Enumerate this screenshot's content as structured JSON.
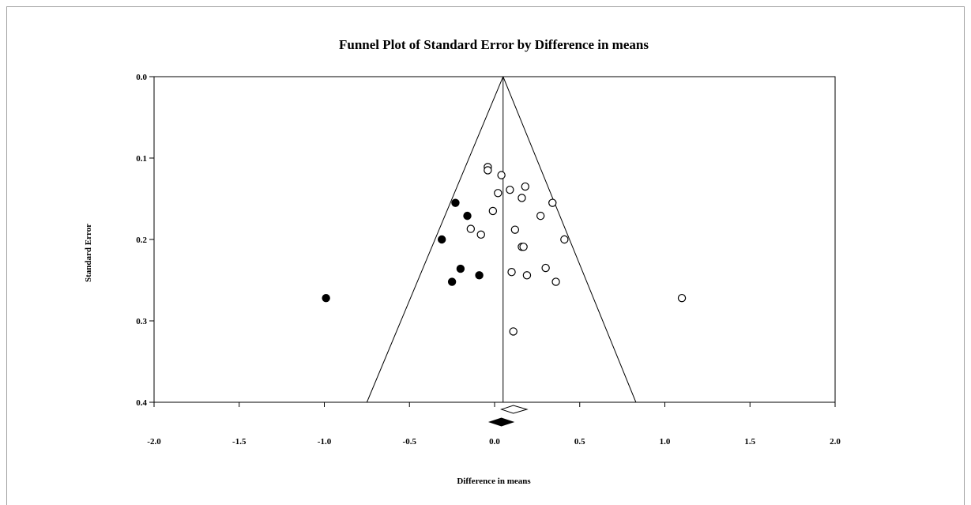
{
  "chart_data": {
    "type": "scatter",
    "title": "Funnel Plot of Standard Error by Difference in means",
    "xlabel": "Difference in means",
    "ylabel": "Standard Error",
    "xlim": [
      -2.0,
      2.0
    ],
    "ylim": [
      0.0,
      0.4
    ],
    "y_inverted": true,
    "grid": false,
    "x_ticks": [
      "-2.0",
      "-1.5",
      "-1.0",
      "-0.5",
      "0.0",
      "0.5",
      "1.0",
      "1.5",
      "2.0"
    ],
    "y_ticks": [
      "0.0",
      "0.1",
      "0.2",
      "0.3",
      "0.4"
    ],
    "funnel": {
      "center": 0.05,
      "apex_se": 0.0,
      "base_se": 0.4,
      "left_at_base": -0.75,
      "right_at_base": 0.83
    },
    "series": [
      {
        "marker": "open-circle",
        "points": [
          {
            "x": -0.04,
            "y": 0.111
          },
          {
            "x": -0.04,
            "y": 0.115
          },
          {
            "x": 0.04,
            "y": 0.121
          },
          {
            "x": 0.18,
            "y": 0.135
          },
          {
            "x": 0.09,
            "y": 0.139
          },
          {
            "x": 0.02,
            "y": 0.143
          },
          {
            "x": 0.16,
            "y": 0.149
          },
          {
            "x": 0.34,
            "y": 0.155
          },
          {
            "x": -0.01,
            "y": 0.165
          },
          {
            "x": 0.27,
            "y": 0.171
          },
          {
            "x": -0.14,
            "y": 0.187
          },
          {
            "x": 0.12,
            "y": 0.188
          },
          {
            "x": -0.08,
            "y": 0.194
          },
          {
            "x": 0.41,
            "y": 0.2
          },
          {
            "x": 0.16,
            "y": 0.209
          },
          {
            "x": 0.17,
            "y": 0.209
          },
          {
            "x": 0.3,
            "y": 0.235
          },
          {
            "x": 0.1,
            "y": 0.24
          },
          {
            "x": 0.19,
            "y": 0.244
          },
          {
            "x": 0.36,
            "y": 0.252
          },
          {
            "x": 1.1,
            "y": 0.272
          },
          {
            "x": 0.11,
            "y": 0.313
          }
        ]
      },
      {
        "marker": "filled-circle",
        "points": [
          {
            "x": -0.23,
            "y": 0.155
          },
          {
            "x": -0.16,
            "y": 0.171
          },
          {
            "x": -0.31,
            "y": 0.2
          },
          {
            "x": -0.2,
            "y": 0.236
          },
          {
            "x": -0.09,
            "y": 0.244
          },
          {
            "x": -0.25,
            "y": 0.252
          },
          {
            "x": -0.99,
            "y": 0.272
          }
        ]
      }
    ],
    "summary_diamonds": [
      {
        "marker": "open-diamond",
        "center": 0.11,
        "low": 0.04,
        "high": 0.19
      },
      {
        "marker": "filled-diamond",
        "center": 0.04,
        "low": -0.03,
        "high": 0.11
      }
    ]
  }
}
